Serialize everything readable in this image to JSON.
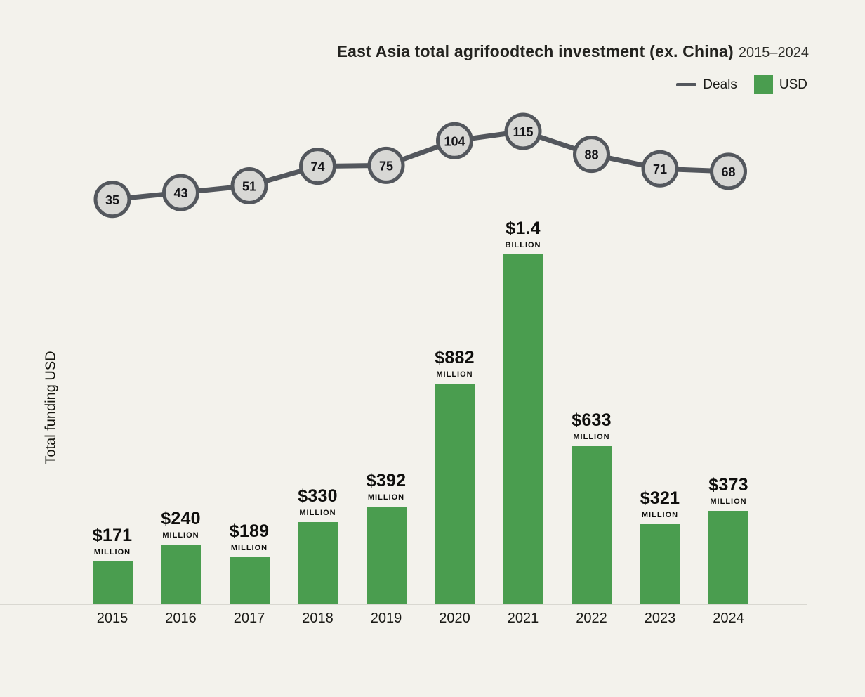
{
  "header": {
    "title": "East Asia total agrifoodtech investment (ex. China)",
    "subtitle": "2015–2024"
  },
  "legend": {
    "deals_label": "Deals",
    "usd_label": "USD"
  },
  "ylabel": "Total funding USD",
  "colors": {
    "background": "#f3f2ec",
    "bar_green": "#4a9d4f",
    "line_dark": "#53575d",
    "marker_fill": "#d8d8d5",
    "axis_line": "#d9d8d1",
    "text_dark": "#16161a"
  },
  "chart_data": {
    "type": "combo",
    "title": "East Asia total agrifoodtech investment (ex. China)",
    "subtitle": "2015–2024",
    "ylabel": "Total funding USD",
    "xlabel": "",
    "grid": false,
    "legend_position": "top-right",
    "categories": [
      "2015",
      "2016",
      "2017",
      "2018",
      "2019",
      "2020",
      "2021",
      "2022",
      "2023",
      "2024"
    ],
    "series": [
      {
        "name": "Deals",
        "type": "line",
        "values": [
          35,
          43,
          51,
          74,
          75,
          104,
          115,
          88,
          71,
          68
        ]
      },
      {
        "name": "USD",
        "type": "bar",
        "values_millions": [
          171,
          240,
          189,
          330,
          392,
          882,
          1400,
          633,
          321,
          373
        ],
        "labels": [
          {
            "value": "$171",
            "unit": "MILLION"
          },
          {
            "value": "$240",
            "unit": "MILLION"
          },
          {
            "value": "$189",
            "unit": "MILLION"
          },
          {
            "value": "$330",
            "unit": "MILLION"
          },
          {
            "value": "$392",
            "unit": "MILLION"
          },
          {
            "value": "$882",
            "unit": "MILLION"
          },
          {
            "value": "$1.4",
            "unit": "BILLION"
          },
          {
            "value": "$633",
            "unit": "MILLION"
          },
          {
            "value": "$321",
            "unit": "MILLION"
          },
          {
            "value": "$373",
            "unit": "MILLION"
          }
        ]
      }
    ],
    "y_axis": {
      "unit": "USD millions",
      "min": 0,
      "max_implied": 1400
    }
  }
}
